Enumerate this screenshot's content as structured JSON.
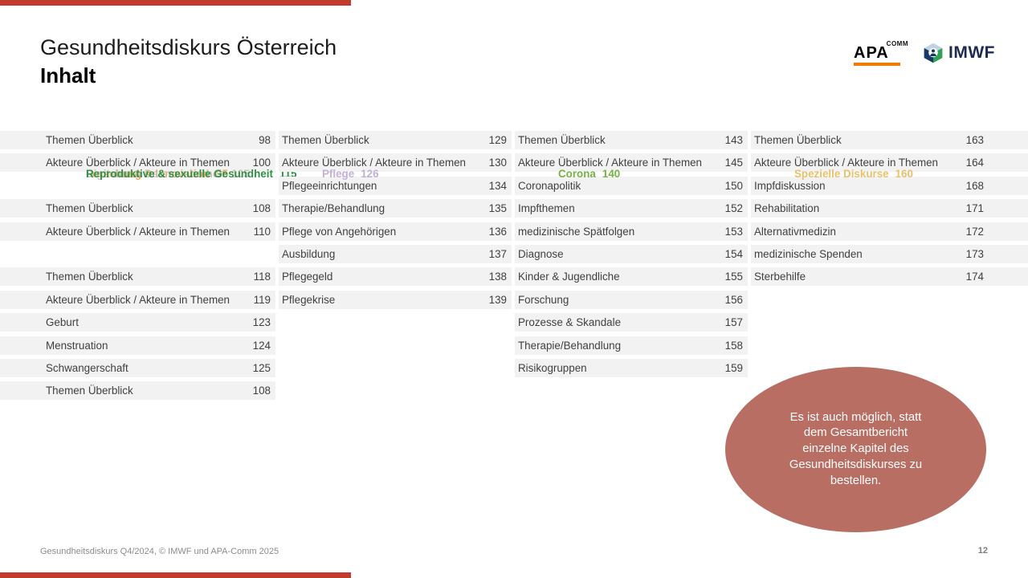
{
  "header": {
    "title_line1": "Gesundheitsdiskurs Österreich",
    "title_line2": "Inhalt"
  },
  "logos": {
    "apa_text": "APA",
    "apa_sup": "COMM",
    "imwf_text": "IMWF",
    "imwf_cube_icon": "cube-with-person-icon"
  },
  "colors": {
    "accent_red": "#c13b2e",
    "apa_orange": "#f07d00",
    "row_stripe": "#f2f2f2",
    "bubble": "#b96e63",
    "header_orange": "#f2a456",
    "header_taupe": "#cbbfb2",
    "header_green_dark": "#2e9147",
    "header_lilac": "#c2b1d6",
    "header_lime": "#77b344",
    "header_gold": "#e9c168"
  },
  "toc": {
    "columns": [
      [
        {
          "type": "header",
          "label": "Forschung & Innovation",
          "page": "95",
          "color": "#f2a456"
        },
        {
          "type": "item",
          "label": "Themen Überblick",
          "page": "98"
        },
        {
          "type": "item",
          "label": "Akteure Überblick / Akteure in Themen",
          "page": "100"
        },
        {
          "type": "spacer"
        },
        {
          "type": "header",
          "label": "Digitales & Datensicherheit",
          "page": "105",
          "color": "#cbbfb2"
        },
        {
          "type": "item",
          "label": "Themen Überblick",
          "page": "108"
        },
        {
          "type": "item",
          "label": "Akteure Überblick / Akteure in Themen",
          "page": "110"
        },
        {
          "type": "spacer"
        },
        {
          "type": "header",
          "label": "Reproduktive & sexuelle Gesundheit",
          "page": "115",
          "color": "#2e9147"
        },
        {
          "type": "item",
          "label": "Themen Überblick",
          "page": "118"
        },
        {
          "type": "item",
          "label": "Akteure Überblick / Akteure in Themen",
          "page": "119"
        },
        {
          "type": "item",
          "label": "Geburt",
          "page": "123"
        },
        {
          "type": "item",
          "label": "Menstruation",
          "page": "124"
        },
        {
          "type": "item",
          "label": "Schwangerschaft",
          "page": "125"
        },
        {
          "type": "item",
          "label": "Themen Überblick",
          "page": "108"
        }
      ],
      [
        {
          "type": "header",
          "label": "Pflege",
          "page": "126",
          "color": "#c2b1d6"
        },
        {
          "type": "item",
          "label": "Themen Überblick",
          "page": "129"
        },
        {
          "type": "item",
          "label": "Akteure Überblick / Akteure in Themen",
          "page": "130"
        },
        {
          "type": "item",
          "label": "Pflegeeinrichtungen",
          "page": "134"
        },
        {
          "type": "item",
          "label": "Therapie/Behandlung",
          "page": "135"
        },
        {
          "type": "item",
          "label": "Pflege von Angehörigen",
          "page": "136"
        },
        {
          "type": "item",
          "label": "Ausbildung",
          "page": "137"
        },
        {
          "type": "item",
          "label": "Pflegegeld",
          "page": "138"
        },
        {
          "type": "item",
          "label": "Pflegekrise",
          "page": "139"
        }
      ],
      [
        {
          "type": "header",
          "label": "Corona",
          "page": "140",
          "color": "#77b344"
        },
        {
          "type": "item",
          "label": "Themen Überblick",
          "page": "143"
        },
        {
          "type": "item",
          "label": "Akteure Überblick / Akteure in Themen",
          "page": "145"
        },
        {
          "type": "item",
          "label": "Coronapolitik",
          "page": "150"
        },
        {
          "type": "item",
          "label": "Impfthemen",
          "page": "152"
        },
        {
          "type": "item",
          "label": "medizinische Spätfolgen",
          "page": "153"
        },
        {
          "type": "item",
          "label": "Diagnose",
          "page": "154"
        },
        {
          "type": "item",
          "label": "Kinder & Jugendliche",
          "page": "155"
        },
        {
          "type": "item",
          "label": "Forschung",
          "page": "156"
        },
        {
          "type": "item",
          "label": "Prozesse & Skandale",
          "page": "157"
        },
        {
          "type": "item",
          "label": "Therapie/Behandlung",
          "page": "158"
        },
        {
          "type": "item",
          "label": "Risikogruppen",
          "page": "159"
        }
      ],
      [
        {
          "type": "header",
          "label": "Spezielle Diskurse",
          "page": "160",
          "color": "#e9c168"
        },
        {
          "type": "item",
          "label": "Themen Überblick",
          "page": "163"
        },
        {
          "type": "item",
          "label": "Akteure Überblick / Akteure in Themen",
          "page": "164"
        },
        {
          "type": "item",
          "label": "Impfdiskussion",
          "page": "168"
        },
        {
          "type": "item",
          "label": "Rehabilitation",
          "page": "171"
        },
        {
          "type": "item",
          "label": "Alternativmedizin",
          "page": "172"
        },
        {
          "type": "item",
          "label": "medizinische Spenden",
          "page": "173"
        },
        {
          "type": "item",
          "label": "Sterbehilfe",
          "page": "174"
        }
      ]
    ]
  },
  "note": {
    "text": "Es ist auch möglich, statt\ndem Gesamtbericht\neinzelne Kapitel des\nGesundheitsdiskurses zu\nbestellen."
  },
  "footer": {
    "left": "Gesundheitsdiskurs Q4/2024, © IMWF und APA-Comm 2025",
    "page": "12"
  }
}
